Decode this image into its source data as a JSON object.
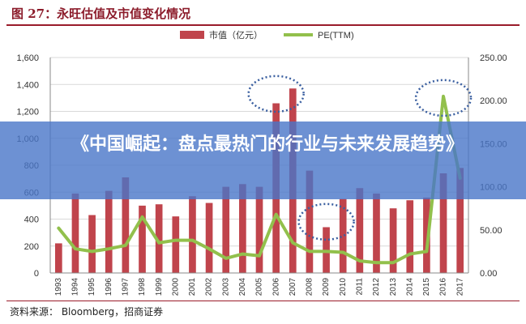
{
  "figure": {
    "title": "图 27：永旺估值及市值变化情况",
    "source": "资料来源： Bloomberg，招商证券"
  },
  "banner": {
    "text": "《中国崛起：盘点最热门的行业与未来发展趋势》"
  },
  "colors": {
    "bar": "#c0444c",
    "line": "#92c04c",
    "circle": "#3a5fa0",
    "title": "#8c1c2b"
  },
  "chart_data": {
    "type": "bar",
    "categories": [
      "1993",
      "1994",
      "1995",
      "1996",
      "1997",
      "1998",
      "1999",
      "2000",
      "2001",
      "2002",
      "2003",
      "2004",
      "2005",
      "2006",
      "2007",
      "2008",
      "2009",
      "2010",
      "2011",
      "2012",
      "2013",
      "2014",
      "2015",
      "2016",
      "2017"
    ],
    "series": [
      {
        "name": "市值（亿元）",
        "type": "bar",
        "axis": "left",
        "values": [
          220,
          590,
          430,
          610,
          710,
          500,
          510,
          420,
          570,
          520,
          640,
          660,
          640,
          1260,
          1370,
          760,
          340,
          550,
          630,
          590,
          480,
          540,
          560,
          740,
          780
        ]
      },
      {
        "name": "PE(TTM)",
        "type": "line",
        "axis": "right",
        "values": [
          52,
          28,
          25,
          28,
          32,
          65,
          35,
          38,
          38,
          28,
          17,
          22,
          20,
          68,
          35,
          25,
          25,
          24,
          14,
          12,
          12,
          22,
          25,
          205,
          110
        ]
      }
    ],
    "y_left": {
      "min": 0,
      "max": 1600,
      "ticks": [
        0,
        200,
        400,
        600,
        800,
        1000,
        1200,
        1400,
        1600
      ],
      "tick_labels": [
        "0",
        "200",
        "400",
        "600",
        "800",
        "1,000",
        "1,200",
        "1,400",
        "1,600"
      ]
    },
    "y_right": {
      "min": 0,
      "max": 250,
      "ticks": [
        0,
        50,
        100,
        150,
        200,
        250
      ],
      "tick_labels": [
        "0.00",
        "50.00",
        "100.00",
        "150.00",
        "200.00",
        "250.00"
      ]
    },
    "legend": {
      "position": "top",
      "labels": [
        "市值（亿元）",
        "PE(TTM)"
      ]
    },
    "annotations": [
      {
        "type": "dashed-ellipse",
        "center_category": "2006",
        "center_value_left": 1330
      },
      {
        "type": "dashed-ellipse",
        "center_category": "2009",
        "center_value_left": 380
      },
      {
        "type": "dashed-ellipse",
        "center_category": "2016",
        "center_value_left": 1300
      }
    ]
  }
}
